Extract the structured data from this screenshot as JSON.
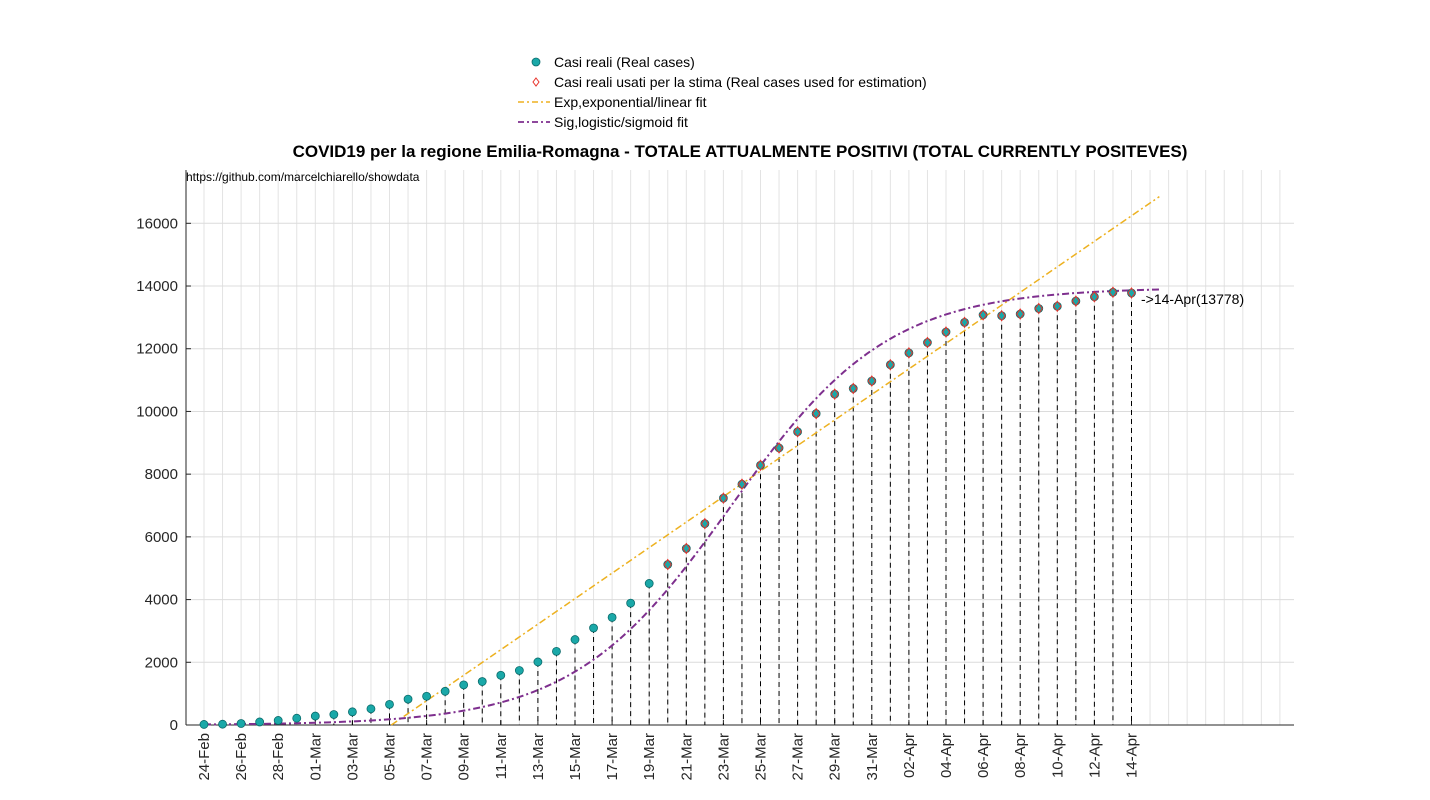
{
  "chart_data": {
    "type": "scatter",
    "title": "COVID19 per la regione Emilia-Romagna - TOTALE ATTUALMENTE POSITIVI (TOTAL CURRENTLY POSITEVES)",
    "source_text": "https://github.com/marcelchiarello/showdata",
    "xlabel": "",
    "ylabel": "",
    "ylim": [
      0,
      17700
    ],
    "yticks": [
      0,
      2000,
      4000,
      6000,
      8000,
      10000,
      12000,
      14000,
      16000
    ],
    "grid": true,
    "legend_position": "top-center",
    "x_dates": [
      "24-Feb",
      "25-Feb",
      "26-Feb",
      "27-Feb",
      "28-Feb",
      "29-Feb",
      "01-Mar",
      "02-Mar",
      "03-Mar",
      "04-Mar",
      "05-Mar",
      "06-Mar",
      "07-Mar",
      "08-Mar",
      "09-Mar",
      "10-Mar",
      "11-Mar",
      "12-Mar",
      "13-Mar",
      "14-Mar",
      "15-Mar",
      "16-Mar",
      "17-Mar",
      "18-Mar",
      "19-Mar",
      "20-Mar",
      "21-Mar",
      "22-Mar",
      "23-Mar",
      "24-Mar",
      "25-Mar",
      "26-Mar",
      "27-Mar",
      "28-Mar",
      "29-Mar",
      "30-Mar",
      "31-Mar",
      "01-Apr",
      "02-Apr",
      "03-Apr",
      "04-Apr",
      "05-Apr",
      "06-Apr",
      "07-Apr",
      "08-Apr",
      "09-Apr",
      "10-Apr",
      "11-Apr",
      "12-Apr",
      "13-Apr",
      "14-Apr"
    ],
    "x_tick_labels": [
      "24-Feb",
      "26-Feb",
      "28-Feb",
      "01-Mar",
      "03-Mar",
      "05-Mar",
      "07-Mar",
      "09-Mar",
      "11-Mar",
      "13-Mar",
      "15-Mar",
      "17-Mar",
      "19-Mar",
      "21-Mar",
      "23-Mar",
      "25-Mar",
      "27-Mar",
      "29-Mar",
      "31-Mar",
      "02-Apr",
      "04-Apr",
      "06-Apr",
      "08-Apr",
      "10-Apr",
      "12-Apr",
      "14-Apr"
    ],
    "x_axis_extent_days": 59,
    "series": [
      {
        "name": "Casi reali (Real cases)",
        "marker": "circle",
        "color": "#1aa8a8",
        "values": [
          18,
          26,
          47,
          97,
          145,
          217,
          285,
          335,
          420,
          516,
          658,
          826,
          916,
          1075,
          1280,
          1386,
          1586,
          1739,
          2011,
          2349,
          2725,
          3093,
          3431,
          3886,
          4514,
          5118,
          5630,
          6421,
          7234,
          7680,
          8283,
          8836,
          9352,
          9932,
          10553,
          10733,
          10970,
          11489,
          11867,
          12197,
          12532,
          12840,
          13078,
          13051,
          13106,
          13283,
          13354,
          13520,
          13656,
          13801,
          13778
        ]
      },
      {
        "name": "Casi reali usati per la stima (Real cases used for estimation)",
        "marker": "diamond",
        "color": "#e8342c",
        "values_from_index": 25,
        "values": [
          5118,
          5630,
          6421,
          7234,
          7680,
          8283,
          8836,
          9352,
          9932,
          10553,
          10733,
          10970,
          11489,
          11867,
          12197,
          12532,
          12840,
          13078,
          13051,
          13106,
          13283,
          13354,
          13520,
          13656,
          13801,
          13778
        ]
      },
      {
        "name": "Exp,exponential/linear fit",
        "style": "dash-dot",
        "color": "#edb120",
        "type": "line",
        "x_start_index": 10.1,
        "x_end_index": 51.5,
        "y_start": 0,
        "y_end": 16850
      },
      {
        "name": "Sig,logistic/sigmoid fit",
        "style": "dash-dot",
        "color": "#7e2f8e",
        "type": "logistic",
        "K": 13950,
        "midpoint_index": 28.4,
        "rate": 0.235,
        "x_start_index": 0,
        "x_end_index": 51.5
      }
    ],
    "annotations": [
      {
        "text": "->14-Apr(13778)",
        "x": "14-Apr",
        "y": 13778
      }
    ]
  },
  "colors": {
    "real": "#1aa8a8",
    "estimation": "#e8342c",
    "linear_fit": "#edb120",
    "sigmoid_fit": "#7e2f8e"
  }
}
